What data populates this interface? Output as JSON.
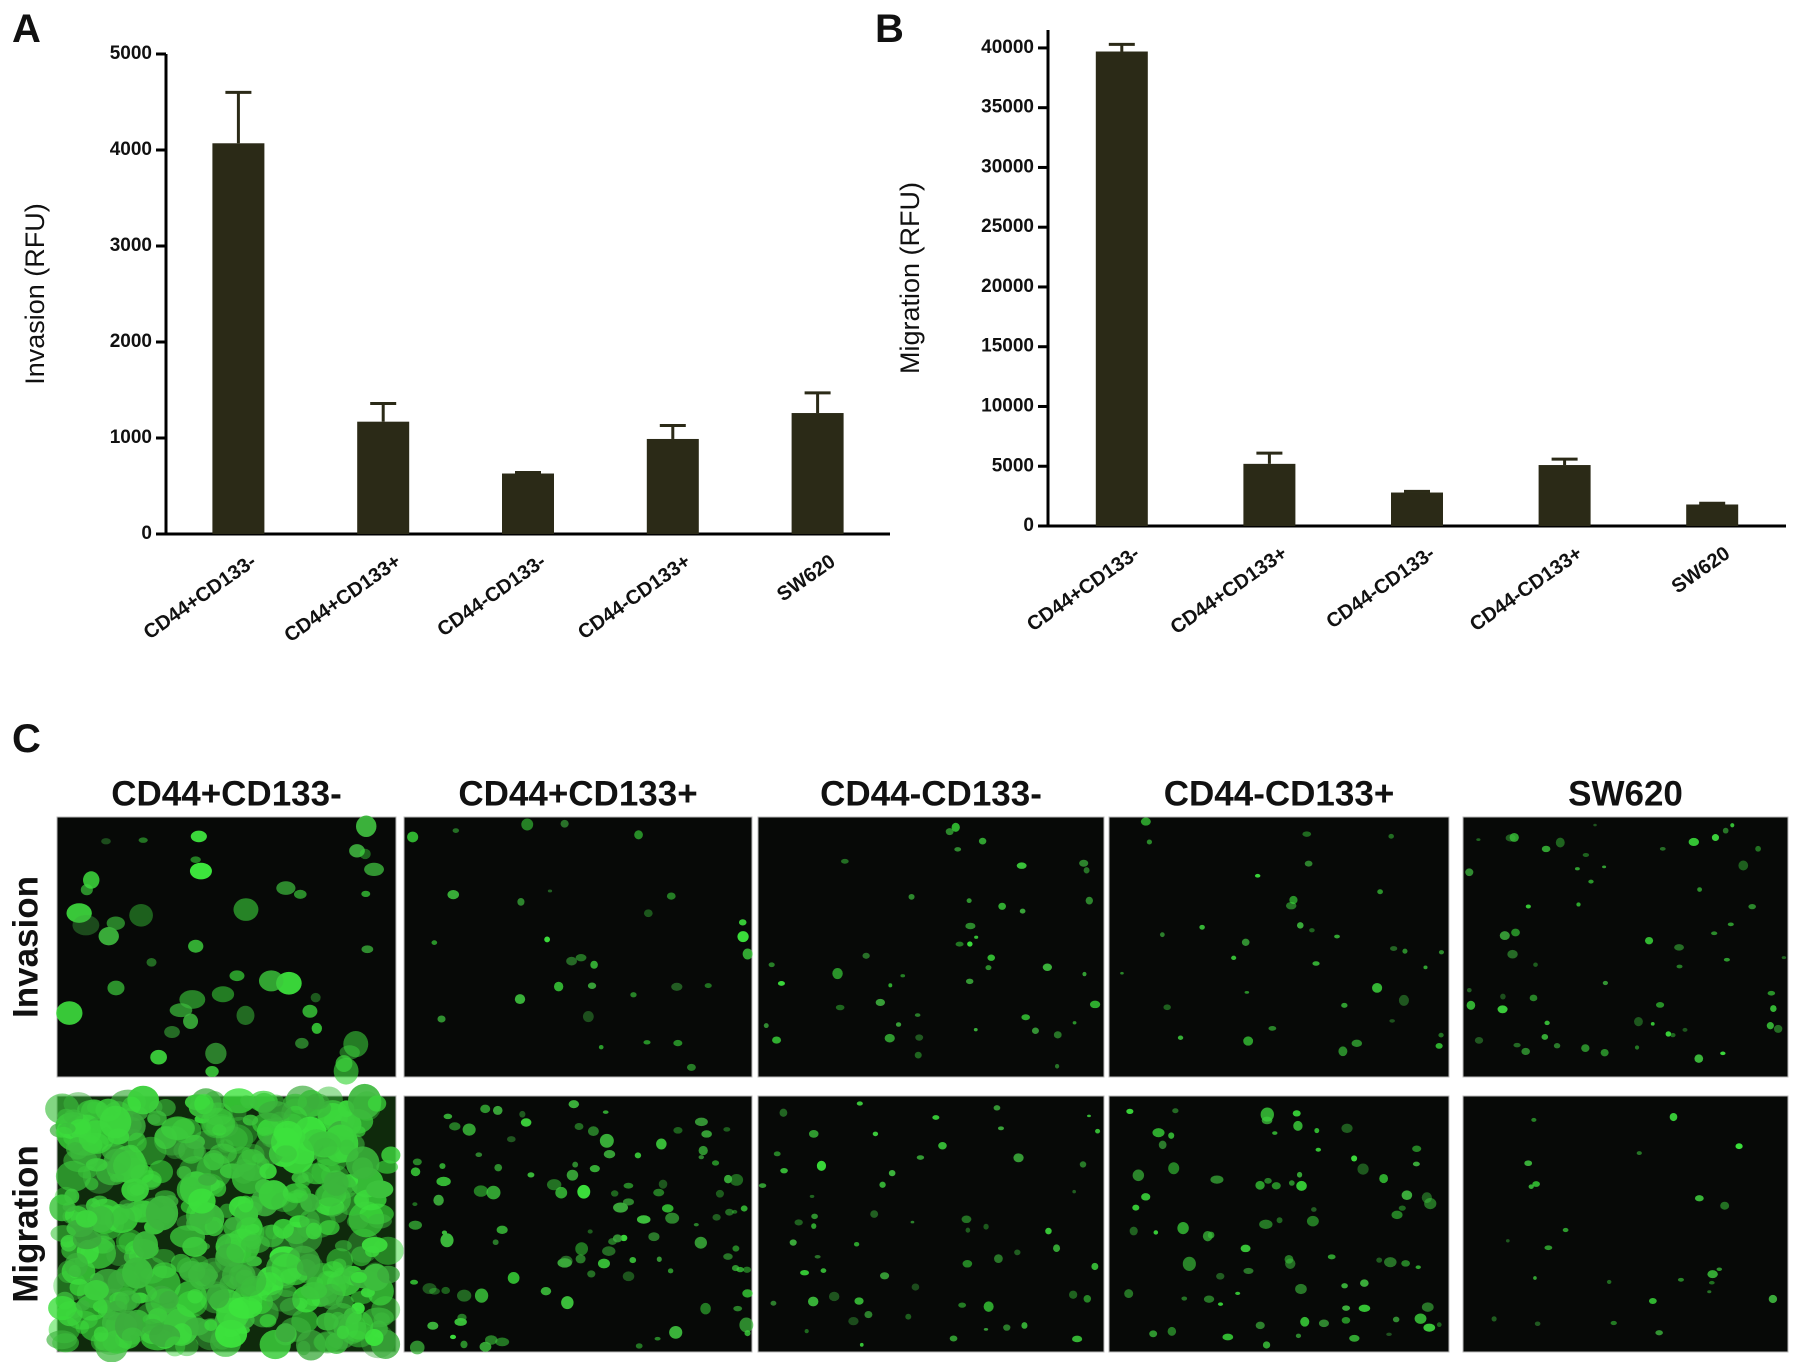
{
  "chart_data": [
    {
      "type": "bar",
      "panel": "A",
      "ylabel": "Invasion (RFU)",
      "categories": [
        "CD44+CD133-",
        "CD44+CD133+",
        "CD44-CD133-",
        "CD44-CD133+",
        "SW620"
      ],
      "values": [
        4070,
        1170,
        630,
        990,
        1260
      ],
      "errors": [
        530,
        190,
        10,
        140,
        210
      ],
      "color": "#2b2a17",
      "ylim": [
        0,
        5000
      ],
      "yticks": [
        0,
        1000,
        2000,
        3000,
        4000,
        5000
      ]
    },
    {
      "type": "bar",
      "panel": "B",
      "ylabel": "Migration (RFU)",
      "categories": [
        "CD44+CD133-",
        "CD44+CD133+",
        "CD44-CD133-",
        "CD44-CD133+",
        "SW620"
      ],
      "values": [
        39700,
        5200,
        2800,
        5100,
        1800
      ],
      "errors": [
        600,
        900,
        100,
        500,
        100
      ],
      "color": "#2b2a17",
      "ylim": [
        0,
        41500
      ],
      "yticks": [
        0,
        5000,
        10000,
        15000,
        20000,
        25000,
        30000,
        35000,
        40000
      ]
    }
  ],
  "panel_c": {
    "label": "C",
    "columns": [
      "CD44+CD133-",
      "CD44+CD133+",
      "CD44-CD133-",
      "CD44-CD133+",
      "SW620"
    ],
    "rows": [
      "Invasion",
      "Migration"
    ]
  }
}
